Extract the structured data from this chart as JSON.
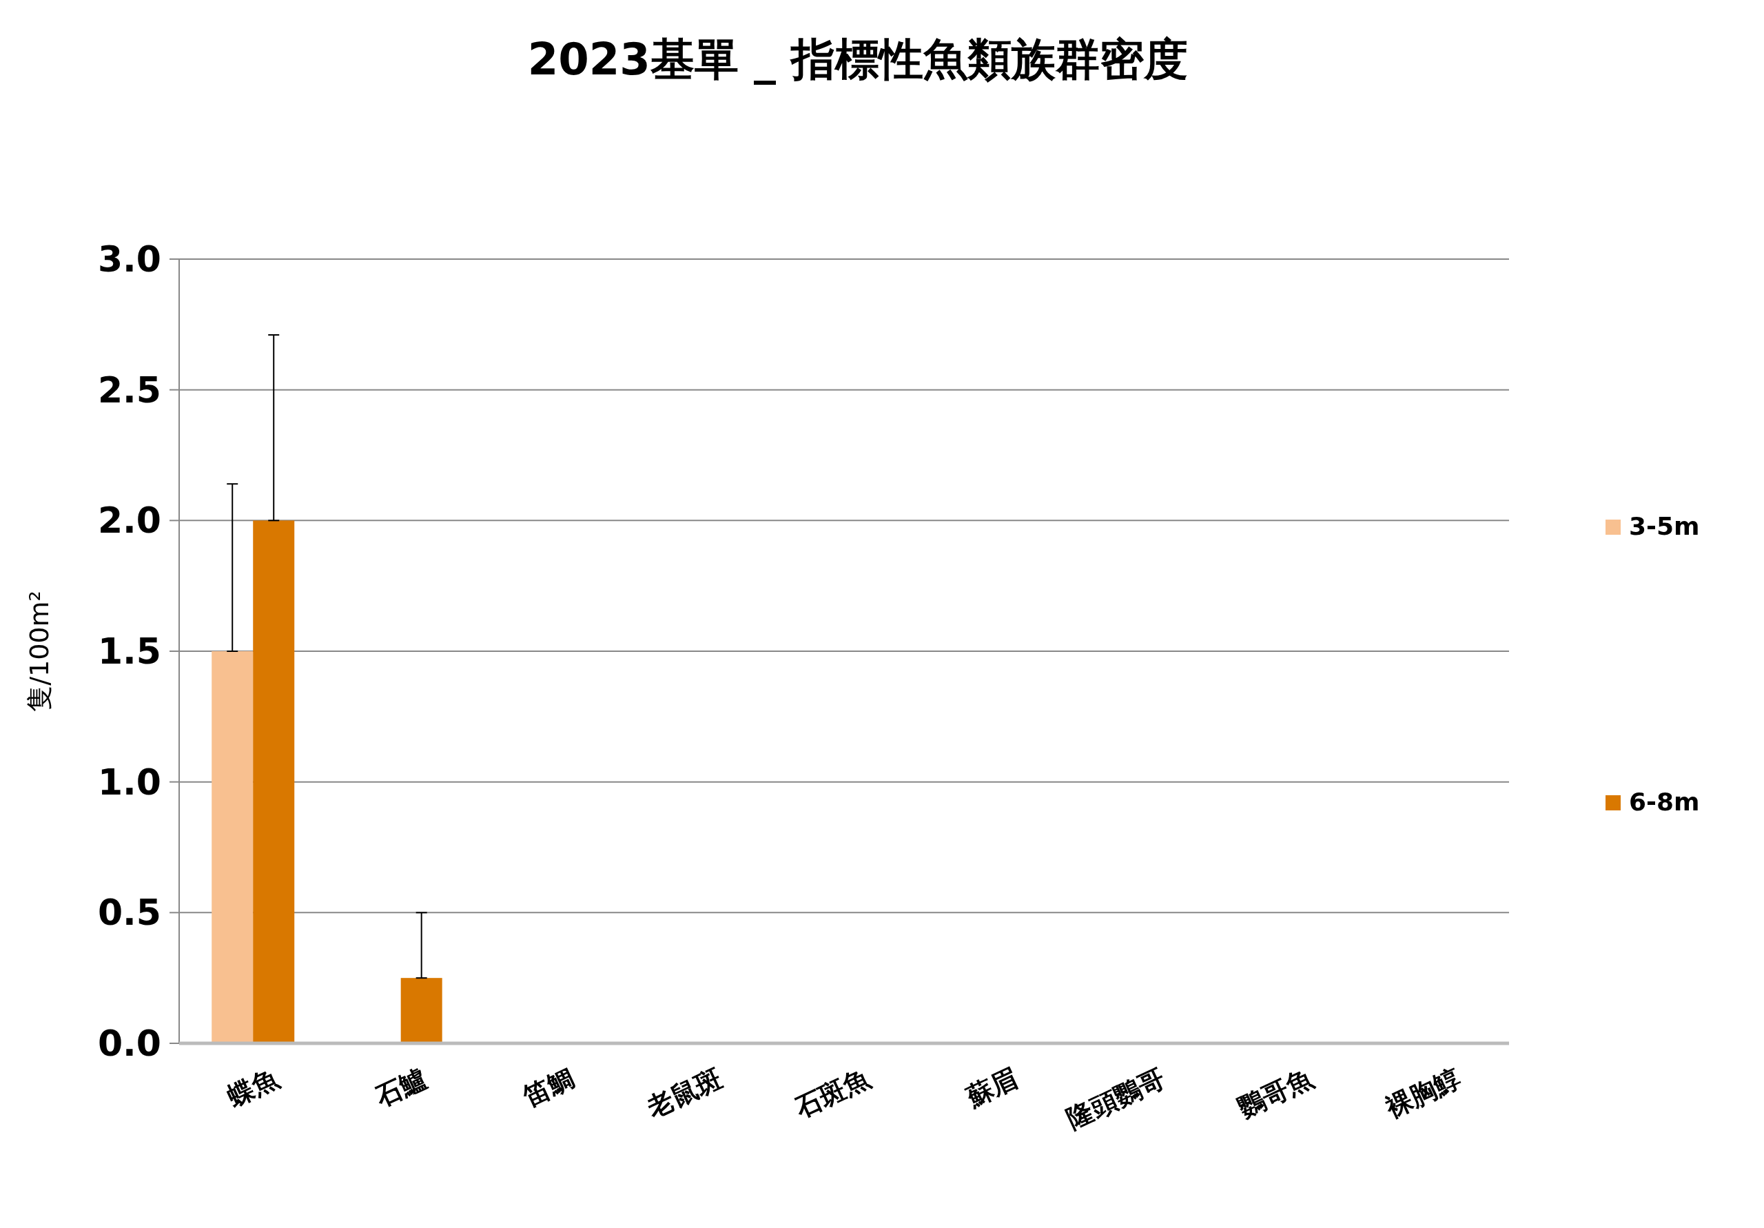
{
  "chart_data": {
    "type": "bar",
    "title": "2023基單 _ 指標性魚類族群密度",
    "ylabel": "隻/100m²",
    "categories": [
      "蝶魚",
      "石鱸",
      "笛鯛",
      "老鼠斑",
      "石斑魚",
      "蘇眉",
      "隆頭鸚哥",
      "鸚哥魚",
      "裸胸鯙"
    ],
    "series": [
      {
        "name": "3-5m",
        "color": "#f8c090",
        "values": [
          1.5,
          0,
          0,
          0,
          0,
          0,
          0,
          0,
          0
        ],
        "errors": [
          [
            1.5,
            2.14
          ],
          null,
          null,
          null,
          null,
          null,
          null,
          null,
          null
        ]
      },
      {
        "name": "6-8m",
        "color": "#d97800",
        "values": [
          2.0,
          0.25,
          0,
          0,
          0,
          0,
          0,
          0,
          0
        ],
        "errors": [
          [
            2.0,
            2.71
          ],
          [
            0.25,
            0.5
          ],
          null,
          null,
          null,
          null,
          null,
          null,
          null
        ]
      }
    ],
    "ylim": [
      0,
      3
    ],
    "yticks": [
      {
        "value": 0,
        "label": "0.0"
      },
      {
        "value": 0.5,
        "label": "0.5"
      },
      {
        "value": 1,
        "label": "1.0"
      },
      {
        "value": 1.5,
        "label": "1.5"
      },
      {
        "value": 2,
        "label": "2.0"
      },
      {
        "value": 2.5,
        "label": "2.5"
      },
      {
        "value": 3,
        "label": "3.0"
      }
    ],
    "grid": "y",
    "legend": "right"
  }
}
